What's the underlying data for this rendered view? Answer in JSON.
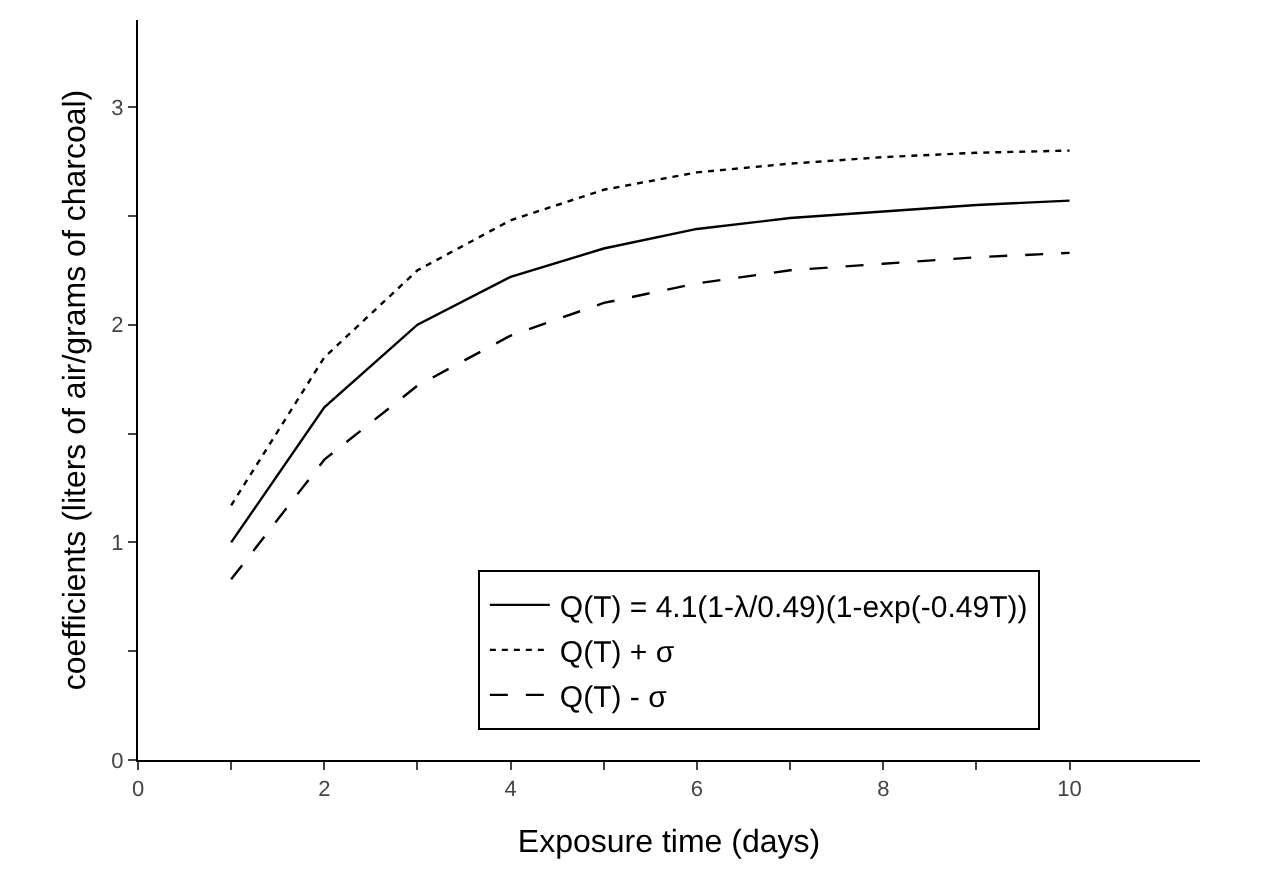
{
  "chart_data": {
    "type": "line",
    "xlabel": "Exposure time (days)",
    "ylabel": "coefficients (liters of air/grams of charcoal)",
    "x": [
      1,
      2,
      3,
      4,
      5,
      6,
      7,
      8,
      9,
      10
    ],
    "series": [
      {
        "name": "Q(T) = 4.1(1-λ/0.49)(1-exp(-0.49T))",
        "color": "#000000",
        "line_style": "solid",
        "values": [
          1.0,
          1.62,
          2.0,
          2.22,
          2.35,
          2.44,
          2.49,
          2.52,
          2.55,
          2.57
        ]
      },
      {
        "name": "Q(T) + σ",
        "color": "#000000",
        "line_style": "dotted",
        "values": [
          1.17,
          1.85,
          2.25,
          2.48,
          2.62,
          2.7,
          2.74,
          2.77,
          2.79,
          2.8
        ]
      },
      {
        "name": "Q(T) - σ",
        "color": "#000000",
        "line_style": "dashed",
        "values": [
          0.83,
          1.38,
          1.72,
          1.95,
          2.1,
          2.19,
          2.25,
          2.28,
          2.31,
          2.33
        ]
      }
    ],
    "xlim": [
      0,
      11.4
    ],
    "ylim": [
      0,
      3.4
    ],
    "xticks": [
      0,
      {
        "value": 1,
        "label": null
      },
      2,
      {
        "value": 3,
        "label": null
      },
      4,
      {
        "value": 5,
        "label": null
      },
      6,
      {
        "value": 7,
        "label": null
      },
      8,
      {
        "value": 9,
        "label": null
      },
      10
    ],
    "yticks": [
      0,
      {
        "value": 0.5,
        "label": null
      },
      1,
      {
        "value": 1.5,
        "label": null
      },
      2,
      {
        "value": 2.5,
        "label": null
      },
      3
    ],
    "grid": false,
    "legend": "bottom right",
    "marker": "none"
  }
}
